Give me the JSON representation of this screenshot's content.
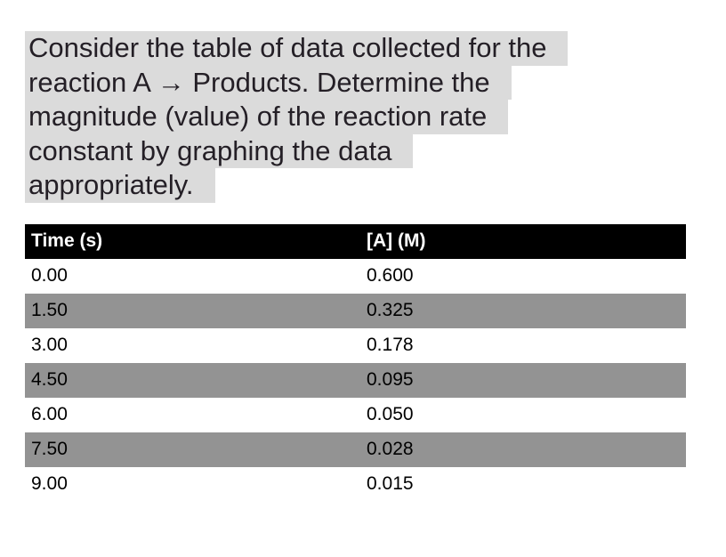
{
  "question": {
    "full_text": "Consider the table of data collected for the reaction A → Products. Determine the magnitude (value) of the reaction rate constant by graphing the data appropriately.",
    "lines": [
      "Consider the table of data collected for the",
      "reaction A → Products. Determine the",
      "magnitude (value) of the reaction rate",
      "constant by graphing the data",
      "appropriately."
    ]
  },
  "table": {
    "headers": [
      "Time (s)",
      "[A] (M)"
    ],
    "rows": [
      [
        "0.00",
        "0.600"
      ],
      [
        "1.50",
        "0.325"
      ],
      [
        "3.00",
        "0.178"
      ],
      [
        "4.50",
        "0.095"
      ],
      [
        "6.00",
        "0.050"
      ],
      [
        "7.50",
        "0.028"
      ],
      [
        "9.00",
        "0.015"
      ]
    ]
  },
  "colors": {
    "highlight_bg": "#dbdbdb",
    "header_bg": "#000000",
    "header_text": "#ffffff",
    "row_alt_bg": "#939393",
    "body_text": "#241f26"
  }
}
